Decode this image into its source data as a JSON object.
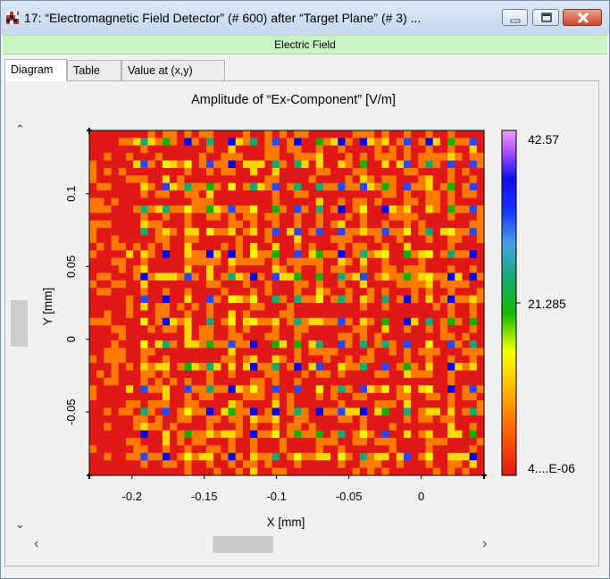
{
  "window": {
    "title": "17: “Electromagnetic Field Detector” (# 600) after “Target Plane” (# 3) ..."
  },
  "group_label": "Electric Field",
  "tabs": [
    {
      "label": "Diagram",
      "active": true
    },
    {
      "label": "Table",
      "active": false
    },
    {
      "label": "Value at (x,y)",
      "active": false
    }
  ],
  "chart_data": {
    "type": "heatmap",
    "title": "Amplitude of “Ex-Component”   [V/m]",
    "xlabel": "X [mm]",
    "ylabel": "Y [mm]",
    "x_ticks": [
      "-0.2",
      "-0.15",
      "-0.1",
      "-0.05",
      "0"
    ],
    "x_tick_values": [
      -0.2,
      -0.15,
      -0.1,
      -0.05,
      0
    ],
    "y_ticks": [
      "0.1",
      "0.05",
      "0",
      "-0.05"
    ],
    "y_tick_values": [
      0.1,
      0.05,
      0,
      -0.05
    ],
    "xlim": [
      -0.2295,
      0.0435
    ],
    "ylim": [
      -0.0935,
      0.1435
    ],
    "colorbar": {
      "max_label": "42.57",
      "mid_label": "21.285",
      "min_label": "4....E-06",
      "colors": [
        "#e01818",
        "#ff7a00",
        "#ffd800",
        "#f0ff00",
        "#11b000",
        "#16a870",
        "#2a48ff",
        "#0000e8",
        "#b050ff",
        "#f0a0ff"
      ]
    },
    "pattern": {
      "grid_columns": 54,
      "grid_rows": 46,
      "period_columns": 3,
      "period_rows": 3
    }
  },
  "scrollbars": {
    "up_arrow": "⌃",
    "down_arrow": "⌄",
    "left_arrow": "‹",
    "right_arrow": "›"
  }
}
